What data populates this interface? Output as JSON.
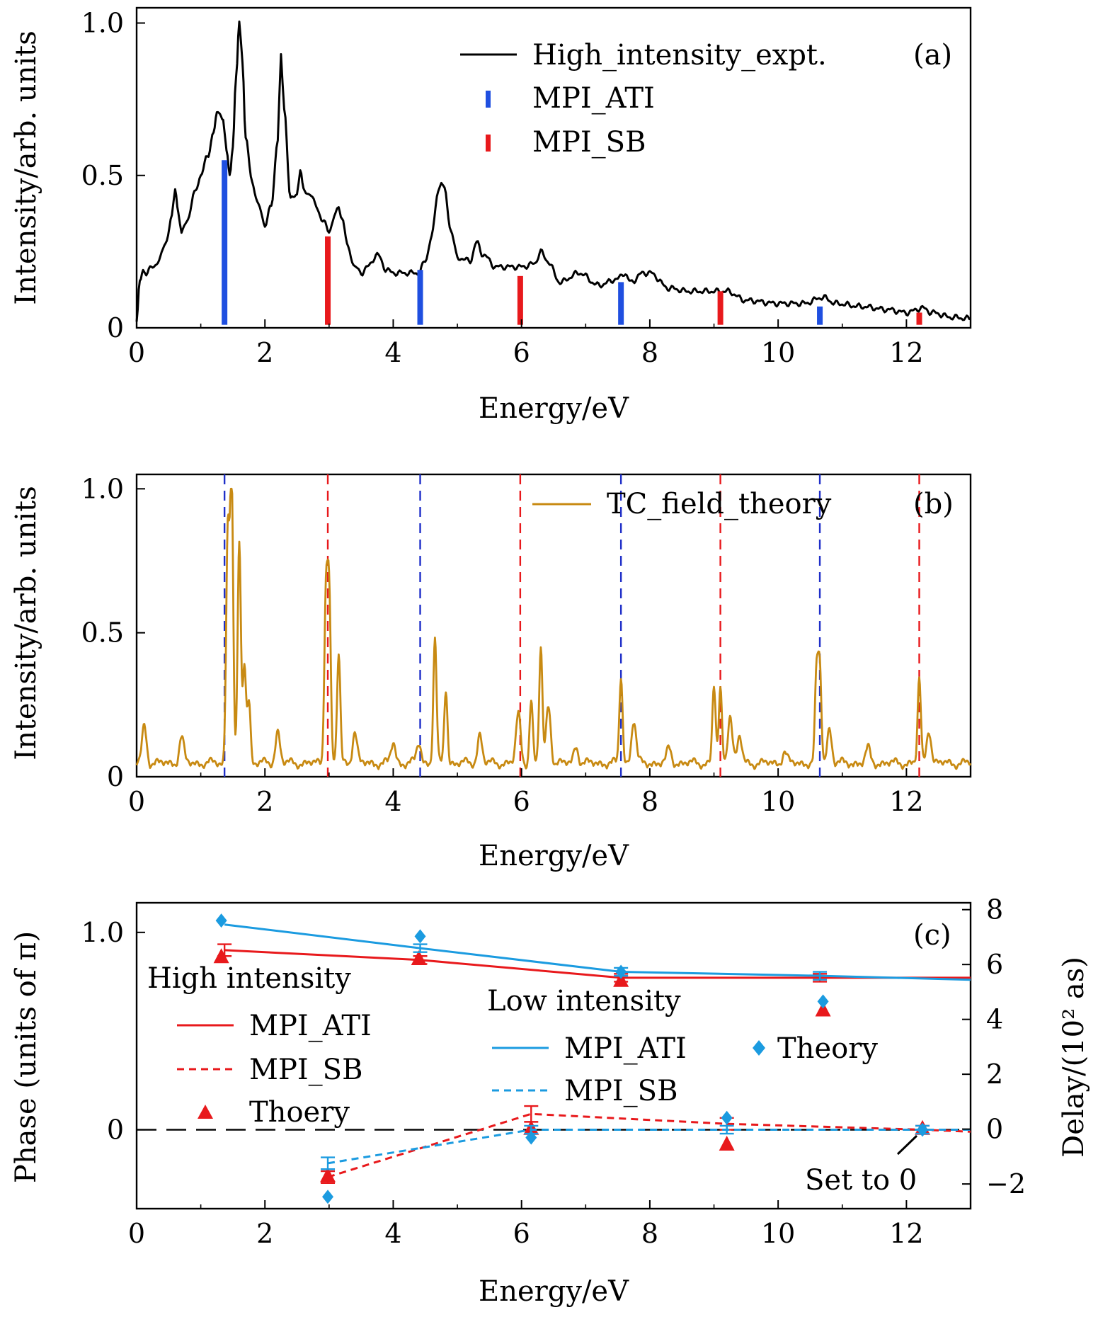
{
  "chart_data": [
    {
      "type": "line",
      "panel_label": "(a)",
      "xlabel": "Energy/eV",
      "ylabel": "Intensity/arb. units",
      "xlim": [
        0,
        13
      ],
      "ylim": [
        0,
        1.05
      ],
      "x_ticks": [
        "0",
        "2",
        "4",
        "6",
        "8",
        "10",
        "12"
      ],
      "y_ticks": [
        "0",
        "0.5",
        "1.0"
      ],
      "legend_position": "top-right",
      "series": [
        {
          "name": "High_intensity_expt.",
          "style": "line",
          "color": "#000000",
          "x": [
            0.0,
            0.05,
            0.1,
            0.15,
            0.25,
            0.35,
            0.45,
            0.55,
            0.6,
            0.65,
            0.7,
            0.8,
            0.9,
            1.0,
            1.1,
            1.2,
            1.25,
            1.3,
            1.35,
            1.4,
            1.45,
            1.5,
            1.55,
            1.6,
            1.65,
            1.7,
            1.8,
            1.9,
            2.0,
            2.1,
            2.2,
            2.25,
            2.3,
            2.4,
            2.5,
            2.55,
            2.6,
            2.7,
            2.8,
            2.9,
            3.0,
            3.1,
            3.15,
            3.2,
            3.3,
            3.4,
            3.5,
            3.6,
            3.75,
            3.9,
            4.0,
            4.2,
            4.4,
            4.5,
            4.6,
            4.7,
            4.75,
            4.8,
            4.9,
            5.0,
            5.2,
            5.3,
            5.4,
            5.6,
            5.8,
            6.0,
            6.2,
            6.3,
            6.4,
            6.6,
            6.9,
            7.2,
            7.5,
            7.6,
            7.7,
            7.9,
            8.0,
            8.3,
            8.6,
            9.0,
            9.2,
            9.5,
            10.0,
            10.4,
            10.7,
            10.9,
            11.3,
            11.7,
            12.0,
            12.25,
            12.4,
            12.7,
            13.0
          ],
          "y": [
            0.02,
            0.15,
            0.19,
            0.18,
            0.2,
            0.22,
            0.28,
            0.36,
            0.46,
            0.38,
            0.31,
            0.36,
            0.44,
            0.5,
            0.56,
            0.64,
            0.7,
            0.71,
            0.68,
            0.58,
            0.5,
            0.6,
            0.82,
            1.0,
            0.88,
            0.62,
            0.48,
            0.4,
            0.34,
            0.4,
            0.62,
            0.89,
            0.72,
            0.42,
            0.44,
            0.52,
            0.45,
            0.44,
            0.4,
            0.35,
            0.32,
            0.37,
            0.4,
            0.36,
            0.26,
            0.2,
            0.18,
            0.2,
            0.24,
            0.19,
            0.18,
            0.18,
            0.18,
            0.22,
            0.3,
            0.45,
            0.48,
            0.45,
            0.32,
            0.23,
            0.22,
            0.28,
            0.24,
            0.2,
            0.2,
            0.2,
            0.21,
            0.25,
            0.22,
            0.15,
            0.18,
            0.14,
            0.16,
            0.18,
            0.15,
            0.18,
            0.18,
            0.13,
            0.12,
            0.12,
            0.12,
            0.09,
            0.08,
            0.08,
            0.1,
            0.08,
            0.07,
            0.06,
            0.05,
            0.065,
            0.05,
            0.035,
            0.03
          ]
        },
        {
          "name": "MPI_ATI",
          "style": "sticks",
          "color": "#1f4fe0",
          "x": [
            1.37,
            4.42,
            7.55,
            10.65
          ],
          "y": [
            0.55,
            0.19,
            0.15,
            0.07
          ]
        },
        {
          "name": "MPI_SB",
          "style": "sticks",
          "color": "#e8191c",
          "x": [
            2.98,
            5.98,
            9.1,
            12.2
          ],
          "y": [
            0.3,
            0.17,
            0.12,
            0.05
          ]
        }
      ]
    },
    {
      "type": "line",
      "panel_label": "(b)",
      "xlabel": "Energy/eV",
      "ylabel": "Intensity/arb. units",
      "xlim": [
        0,
        13
      ],
      "ylim": [
        0,
        1.05
      ],
      "x_ticks": [
        "0",
        "2",
        "4",
        "6",
        "8",
        "10",
        "12"
      ],
      "y_ticks": [
        "0",
        "0.5",
        "1.0"
      ],
      "legend_position": "top-right",
      "series": [
        {
          "name": "TC_field_theory",
          "style": "line",
          "color": "#c88a12",
          "peaks_x": [
            0.12,
            0.7,
            1.42,
            1.48,
            1.6,
            1.68,
            1.75,
            2.2,
            2.95,
            3.0,
            3.15,
            3.4,
            4.0,
            4.4,
            4.65,
            4.82,
            5.35,
            5.95,
            6.15,
            6.3,
            6.42,
            6.85,
            7.55,
            7.75,
            8.3,
            9.0,
            9.1,
            9.25,
            9.4,
            10.1,
            10.6,
            10.65,
            10.8,
            11.4,
            12.2,
            12.35
          ]
        }
      ],
      "reference_lines": {
        "MPI_ATI": {
          "color": "#1f2fc8",
          "x": [
            1.37,
            4.42,
            7.55,
            10.65
          ]
        },
        "MPI_SB": {
          "color": "#e8191c",
          "x": [
            2.98,
            5.98,
            9.1,
            12.2
          ]
        }
      }
    },
    {
      "type": "line",
      "panel_label": "(c)",
      "xlabel": "Energy/eV",
      "ylabel": "Phase (units of π)",
      "ylabel_right": "Delay/(10² as)",
      "xlim": [
        0,
        13
      ],
      "ylim": [
        -0.4,
        1.15
      ],
      "ylim_right": [
        -2.9,
        8.25
      ],
      "x_ticks": [
        "0",
        "2",
        "4",
        "6",
        "8",
        "10",
        "12"
      ],
      "y_ticks": [
        "0",
        "1.0"
      ],
      "y_ticks_right": [
        "−2",
        "0",
        "2",
        "4",
        "6",
        "8"
      ],
      "legend_groups": [
        {
          "title": "High intensity",
          "entries": [
            {
              "label": "MPI_ATI",
              "style": "solid",
              "color": "#e8191c"
            },
            {
              "label": "MPI_SB",
              "style": "dashed",
              "color": "#e8191c"
            },
            {
              "label": "Thoery",
              "style": "triangle",
              "color": "#e8191c"
            }
          ]
        },
        {
          "title": "Low intensity",
          "entries": [
            {
              "label": "MPI_ATI",
              "style": "solid",
              "color": "#1b9be0"
            },
            {
              "label": "Theory",
              "style": "diamond",
              "color": "#1b9be0"
            },
            {
              "label": "MPI_SB",
              "style": "dashed",
              "color": "#1b9be0"
            }
          ]
        }
      ],
      "annotation": "Set to 0",
      "series": [
        {
          "name": "High intensity MPI_ATI",
          "style": "solid",
          "color": "#e8191c",
          "x": [
            1.37,
            4.42,
            7.55,
            10.65,
            13.0
          ],
          "y": [
            0.91,
            0.86,
            0.77,
            0.77,
            0.77
          ],
          "err": [
            0.03,
            0.02,
            0.02,
            0.02,
            0
          ]
        },
        {
          "name": "High intensity MPI_SB",
          "style": "dashed",
          "color": "#e8191c",
          "x": [
            2.98,
            6.15,
            9.2,
            12.25,
            13.0
          ],
          "y": [
            -0.24,
            0.08,
            0.03,
            0.0,
            -0.01
          ],
          "err": [
            0.03,
            0.04,
            0.03,
            0.02,
            0
          ]
        },
        {
          "name": "High intensity Thoery",
          "style": "triangle",
          "color": "#e8191c",
          "x": [
            1.32,
            4.4,
            7.55,
            10.7,
            2.98,
            6.15,
            9.2,
            12.25
          ],
          "y": [
            0.88,
            0.87,
            0.76,
            0.61,
            -0.23,
            0.01,
            -0.07,
            0.01
          ]
        },
        {
          "name": "Low intensity MPI_ATI",
          "style": "solid",
          "color": "#1b9be0",
          "x": [
            1.37,
            4.42,
            7.55,
            10.65,
            13.0
          ],
          "y": [
            1.04,
            0.92,
            0.8,
            0.78,
            0.76
          ],
          "err": [
            0.0,
            0.02,
            0.02,
            0.02,
            0
          ]
        },
        {
          "name": "Low intensity MPI_SB",
          "style": "dashed",
          "color": "#1b9be0",
          "x": [
            2.98,
            6.15,
            9.2,
            12.25,
            13.0
          ],
          "y": [
            -0.17,
            0.0,
            0.0,
            0.0,
            0.0
          ],
          "err": [
            0.03,
            0.02,
            0.02,
            0.02,
            0
          ]
        },
        {
          "name": "Low intensity Theory",
          "style": "diamond",
          "color": "#1b9be0",
          "x": [
            1.32,
            4.42,
            7.55,
            10.7,
            2.98,
            6.15,
            9.2,
            12.25
          ],
          "y": [
            1.06,
            0.98,
            0.8,
            0.65,
            -0.34,
            -0.04,
            0.06,
            0.0
          ]
        }
      ]
    }
  ]
}
